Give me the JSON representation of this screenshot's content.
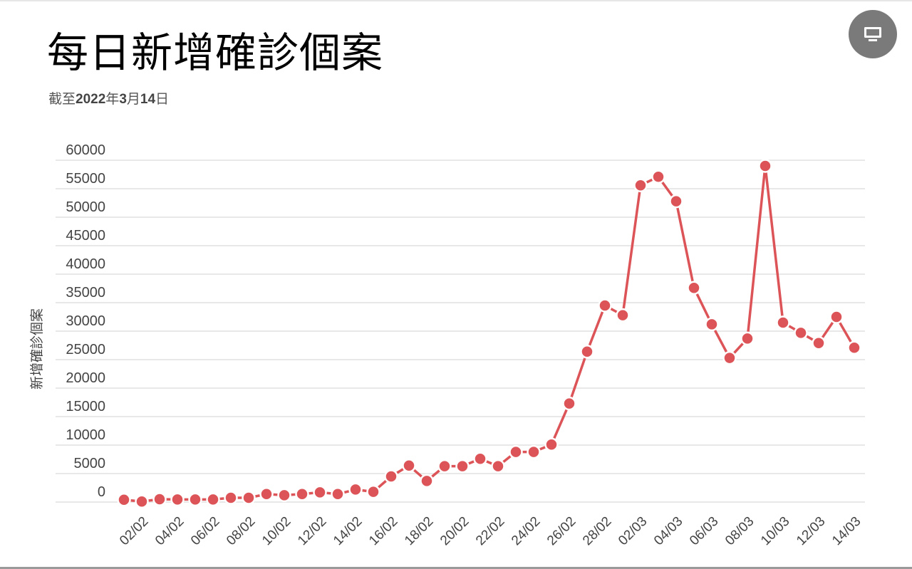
{
  "header": {
    "title": "每日新增確診個案",
    "subtitle_parts": [
      "截至",
      "2022",
      "年",
      "3",
      "月",
      "14",
      "日"
    ]
  },
  "toolbar": {
    "present_icon": "monitor-icon"
  },
  "colors": {
    "line": "#dc5457",
    "grid": "#e8e8e8",
    "button": "#7a7a7a"
  },
  "chart_data": {
    "type": "line",
    "title": "每日新增確診個案",
    "subtitle": "截至2022年3月14日",
    "xlabel": "",
    "ylabel": "新增確診個案",
    "ylim": [
      0,
      60000
    ],
    "yticks": [
      0,
      5000,
      10000,
      15000,
      20000,
      25000,
      30000,
      35000,
      40000,
      45000,
      50000,
      55000,
      60000
    ],
    "grid": true,
    "x": [
      "01/02",
      "02/02",
      "03/02",
      "04/02",
      "05/02",
      "06/02",
      "07/02",
      "08/02",
      "09/02",
      "10/02",
      "11/02",
      "12/02",
      "13/02",
      "14/02",
      "15/02",
      "16/02",
      "17/02",
      "18/02",
      "19/02",
      "20/02",
      "21/02",
      "22/02",
      "23/02",
      "24/02",
      "25/02",
      "26/02",
      "27/02",
      "28/02",
      "01/03",
      "02/03",
      "03/03",
      "04/03",
      "05/03",
      "06/03",
      "07/03",
      "08/03",
      "09/03",
      "10/03",
      "11/03",
      "12/03",
      "13/03",
      "14/03"
    ],
    "xtick_labels": [
      "02/02",
      "04/02",
      "06/02",
      "08/02",
      "10/02",
      "12/02",
      "14/02",
      "16/02",
      "18/02",
      "20/02",
      "22/02",
      "24/02",
      "26/02",
      "28/02",
      "02/03",
      "04/03",
      "06/03",
      "08/03",
      "10/03",
      "12/03",
      "14/03"
    ],
    "series": [
      {
        "name": "新增確診個案",
        "values": [
          400,
          100,
          500,
          450,
          450,
          450,
          750,
          750,
          1400,
          1200,
          1400,
          1700,
          1400,
          2200,
          1800,
          4500,
          6400,
          3700,
          6300,
          6300,
          7600,
          6300,
          8800,
          8800,
          10100,
          17300,
          26400,
          34500,
          32800,
          55600,
          57100,
          52800,
          37600,
          31200,
          25300,
          28700,
          59000,
          31500,
          29700,
          27900,
          32500,
          27100
        ]
      }
    ]
  }
}
